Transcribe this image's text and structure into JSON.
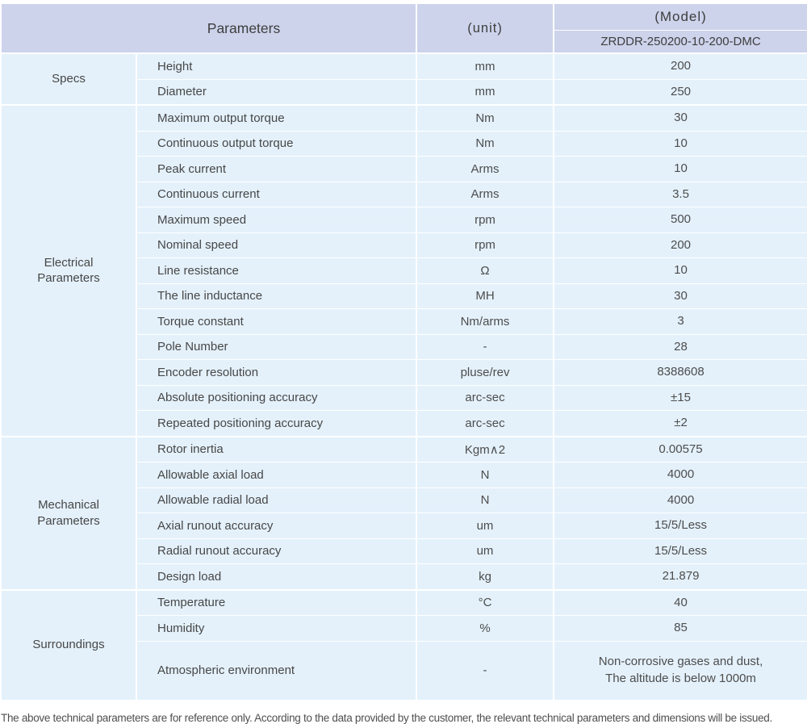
{
  "header": {
    "parameters": "Parameters",
    "unit": "(unit)",
    "model": "(Model)",
    "model_value": "ZRDDR-250200-10-200-DMC"
  },
  "sections": [
    {
      "category": "Specs",
      "rows": [
        {
          "label": "Height",
          "unit": "mm",
          "value": "200"
        },
        {
          "label": "Diameter",
          "unit": "mm",
          "value": "250"
        }
      ]
    },
    {
      "category": "Electrical\nParameters",
      "rows": [
        {
          "label": "Maximum output torque",
          "unit": "Nm",
          "value": "30"
        },
        {
          "label": "Continuous output torque",
          "unit": "Nm",
          "value": "10"
        },
        {
          "label": "Peak current",
          "unit": "Arms",
          "value": "10"
        },
        {
          "label": "Continuous current",
          "unit": "Arms",
          "value": "3.5"
        },
        {
          "label": "Maximum speed",
          "unit": "rpm",
          "value": "500"
        },
        {
          "label": "Nominal speed",
          "unit": "rpm",
          "value": "200"
        },
        {
          "label": "Line resistance",
          "unit": "Ω",
          "value": "10"
        },
        {
          "label": "The line inductance",
          "unit": "MH",
          "value": "30"
        },
        {
          "label": "Torque constant",
          "unit": "Nm/arms",
          "value": "3"
        },
        {
          "label": "Pole Number",
          "unit": "-",
          "value": "28"
        },
        {
          "label": "Encoder resolution",
          "unit": "pluse/rev",
          "value": "8388608"
        },
        {
          "label": "Absolute positioning accuracy",
          "unit": "arc-sec",
          "value": "±15"
        },
        {
          "label": "Repeated positioning accuracy",
          "unit": "arc-sec",
          "value": "±2"
        }
      ]
    },
    {
      "category": "Mechanical\nParameters",
      "rows": [
        {
          "label": "Rotor inertia",
          "unit": "Kgm∧2",
          "value": "0.00575"
        },
        {
          "label": "Allowable axial load",
          "unit": "N",
          "value": "4000"
        },
        {
          "label": "Allowable radial load",
          "unit": "N",
          "value": "4000"
        },
        {
          "label": "Axial runout accuracy",
          "unit": "um",
          "value": "15/5/Less"
        },
        {
          "label": "Radial runout accuracy",
          "unit": "um",
          "value": "15/5/Less"
        },
        {
          "label": "Design load",
          "unit": "kg",
          "value": "21.879"
        }
      ]
    },
    {
      "category": "Surroundings",
      "rows": [
        {
          "label": "Temperature",
          "unit": "°C",
          "value": "40"
        },
        {
          "label": "Humidity",
          "unit": "%",
          "value": "85"
        },
        {
          "label": "Atmospheric environment",
          "unit": "-",
          "value": "Non-corrosive gases and dust,\nThe altitude is below 1000m"
        }
      ]
    }
  ],
  "footer_note": "The above technical parameters are for reference only. According to the data provided by the customer, the relevant technical parameters and dimensions will be issued.",
  "colors": {
    "header_bg": "#cdd3eb",
    "row_bg": "#e4f1fb",
    "border": "#ffffff",
    "body_text": "#4d4d4d",
    "footer_text": "#4f4f4f"
  }
}
